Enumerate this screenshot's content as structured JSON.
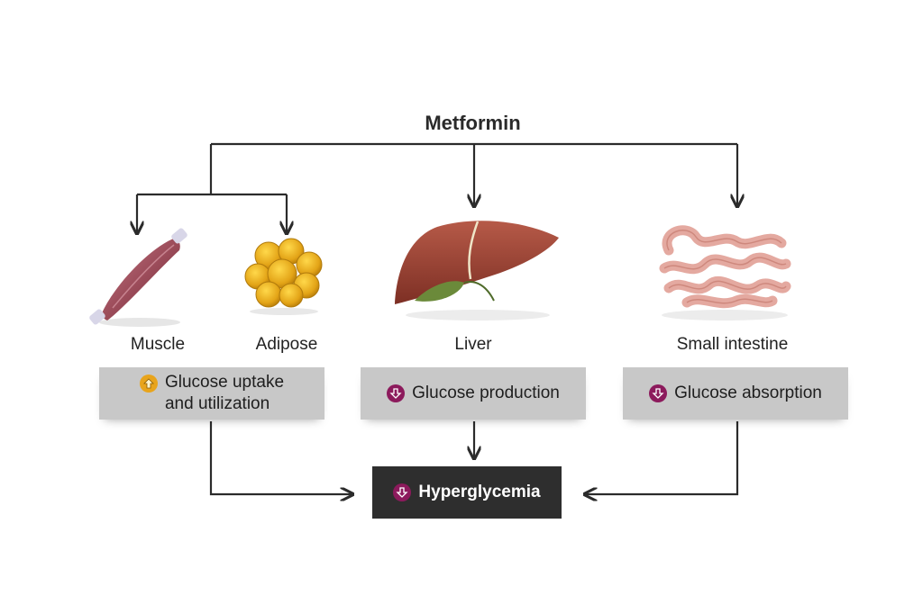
{
  "title": "Metformin",
  "organs": {
    "muscle": "Muscle",
    "adipose": "Adipose",
    "liver": "Liver",
    "intestine": "Small intestine"
  },
  "effects": {
    "uptake_line1": "Glucose uptake",
    "uptake_line2": "and utilization",
    "production": "Glucose production",
    "absorption": "Glucose absorption"
  },
  "result": "Hyperglycemia",
  "colors": {
    "increase_badge": "#e8a41c",
    "decrease_badge": "#8c1a5c",
    "effect_box": "#c8c8c8",
    "result_box": "#2e2e2e",
    "arrow": "#2b2b2b"
  },
  "icons": {
    "increase": "arrow-up-icon",
    "decrease": "arrow-down-icon"
  }
}
